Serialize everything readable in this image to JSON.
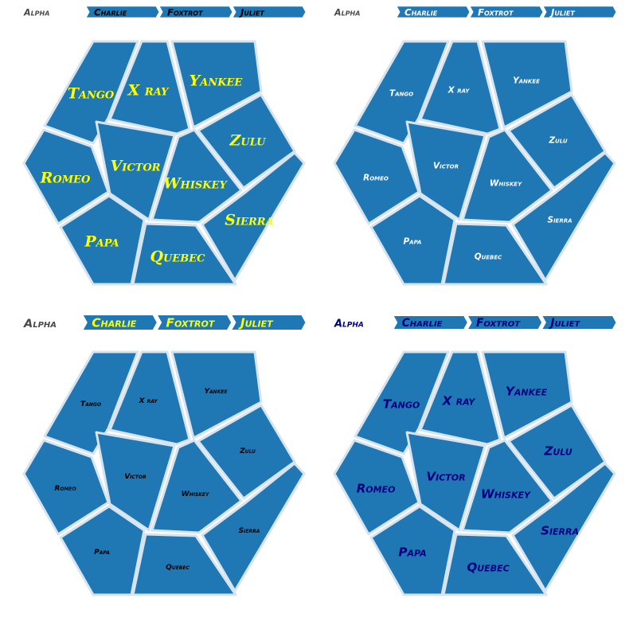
{
  "panels": [
    {
      "style": {
        "font": "\"DejaVu Serif\", serif",
        "fill": "#ffff00",
        "label_weight": "bold",
        "scale": 1.0
      },
      "breadcrumb": {
        "root": "Alpha",
        "items": [
          "Charlie",
          "Foxtrot",
          "Juliet"
        ],
        "root_color": "#4a4a4a",
        "item_color": "#000000",
        "scale": 0.45
      },
      "cells": [
        {
          "id": "tango",
          "label": "Tango"
        },
        {
          "id": "xray",
          "label": "X ray"
        },
        {
          "id": "yankee",
          "label": "Yankee"
        },
        {
          "id": "romeo",
          "label": "Romeo"
        },
        {
          "id": "victor",
          "label": "Victor"
        },
        {
          "id": "zulu",
          "label": "Zulu"
        },
        {
          "id": "whiskey",
          "label": "Whiskey"
        },
        {
          "id": "papa",
          "label": "Papa"
        },
        {
          "id": "quebec",
          "label": "Quebec"
        },
        {
          "id": "sierra",
          "label": "Sierra"
        }
      ]
    },
    {
      "style": {
        "font": "\"DejaVu Sans\", sans-serif",
        "fill": "#ffffff",
        "label_weight": "bold",
        "scale": 0.55
      },
      "breadcrumb": {
        "root": "Alpha",
        "items": [
          "Charlie",
          "Foxtrot",
          "Juliet"
        ],
        "root_color": "#4a4a4a",
        "item_color": "#ffffff",
        "scale": 0.45
      },
      "cells": [
        {
          "id": "tango",
          "label": "Tango"
        },
        {
          "id": "xray",
          "label": "X ray"
        },
        {
          "id": "yankee",
          "label": "Yankee"
        },
        {
          "id": "romeo",
          "label": "Romeo"
        },
        {
          "id": "victor",
          "label": "Victor"
        },
        {
          "id": "zulu",
          "label": "Zulu"
        },
        {
          "id": "whiskey",
          "label": "Whiskey"
        },
        {
          "id": "papa",
          "label": "Papa"
        },
        {
          "id": "quebec",
          "label": "Quebec"
        },
        {
          "id": "sierra",
          "label": "Sierra"
        }
      ]
    },
    {
      "style": {
        "font": "\"DejaVu Sans\", sans-serif",
        "fill": "#000000",
        "label_weight": "bold",
        "scale": 0.48
      },
      "breadcrumb": {
        "root": "Alpha",
        "items": [
          "Charlie",
          "Foxtrot",
          "Juliet"
        ],
        "root_color": "#4a4a4a",
        "item_color": "#ffff00",
        "scale": 0.9
      },
      "cells": [
        {
          "id": "tango",
          "label": "Tango"
        },
        {
          "id": "xray",
          "label": "X ray"
        },
        {
          "id": "yankee",
          "label": "Yankee"
        },
        {
          "id": "romeo",
          "label": "Romeo"
        },
        {
          "id": "victor",
          "label": "Victor"
        },
        {
          "id": "zulu",
          "label": "Zulu"
        },
        {
          "id": "whiskey",
          "label": "Whiskey"
        },
        {
          "id": "papa",
          "label": "Papa"
        },
        {
          "id": "quebec",
          "label": "Quebec"
        },
        {
          "id": "sierra",
          "label": "Sierra"
        }
      ]
    },
    {
      "style": {
        "font": "\"DejaVu Sans\", sans-serif",
        "fill": "#000080",
        "label_weight": "bold",
        "scale": 0.8
      },
      "breadcrumb": {
        "root": "Alpha",
        "items": [
          "Charlie",
          "Foxtrot",
          "Juliet"
        ],
        "root_color": "#000080",
        "item_color": "#000080",
        "scale": 0.7
      },
      "cells": [
        {
          "id": "tango",
          "label": "Tango"
        },
        {
          "id": "xray",
          "label": "X ray"
        },
        {
          "id": "yankee",
          "label": "Yankee"
        },
        {
          "id": "romeo",
          "label": "Romeo"
        },
        {
          "id": "victor",
          "label": "Victor"
        },
        {
          "id": "zulu",
          "label": "Zulu"
        },
        {
          "id": "whiskey",
          "label": "Whiskey"
        },
        {
          "id": "papa",
          "label": "Papa"
        },
        {
          "id": "quebec",
          "label": "Quebec"
        },
        {
          "id": "sierra",
          "label": "Sierra"
        }
      ]
    }
  ],
  "colors": {
    "cell_fill": "#1f77b4",
    "cell_border": "#d6e4f0",
    "crumb_fill": "#1f77b4"
  }
}
